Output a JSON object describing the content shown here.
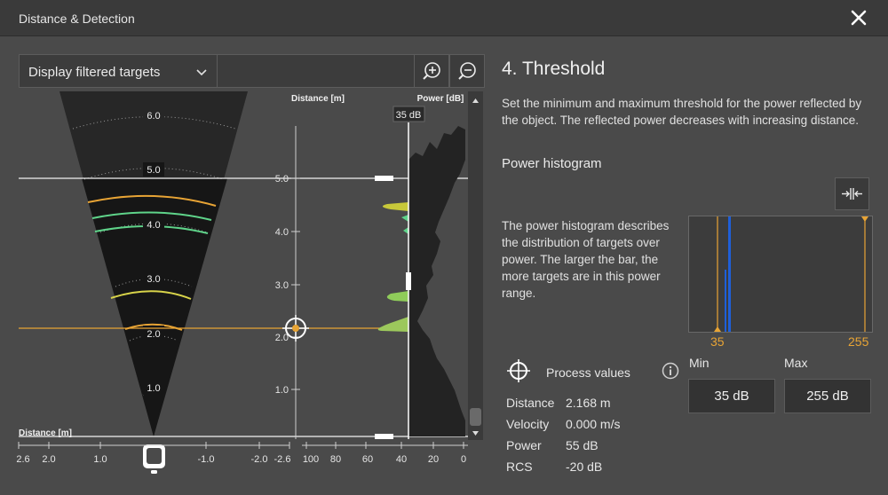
{
  "window": {
    "title": "Distance & Detection"
  },
  "toolbar": {
    "dropdown_value": "Display filtered targets"
  },
  "radar": {
    "arc_labels": [
      "6.0",
      "5.0",
      "4.0",
      "3.0",
      "2.0",
      "1.0"
    ],
    "bottom_axis_title": "Distance [m]",
    "bottom_ticks": [
      "2.6",
      "2.0",
      "1.0",
      "-1.0",
      "-2.0",
      "-2.6"
    ]
  },
  "distance_axis": {
    "title": "Distance [m]",
    "ticks": [
      "5.0",
      "4.0",
      "3.0",
      "2.0",
      "1.0"
    ]
  },
  "power_axis": {
    "title": "Power [dB]",
    "threshold_tooltip": "35 dB",
    "ticks": [
      "100",
      "80",
      "60",
      "40",
      "20",
      "0"
    ]
  },
  "panel": {
    "title": "4. Threshold",
    "description": "Set the minimum and maximum threshold for the power reflected by the object. The reflected power decreases with increasing distance.",
    "histogram_title": "Power histogram",
    "histogram_description": "The power histogram describes the distribution of targets over power. The larger the bar, the more targets are in this power range.",
    "histogram_min_label": "35",
    "histogram_max_label": "255",
    "process_title": "Process values",
    "process_values": [
      {
        "key": "Distance",
        "value": "2.168 m"
      },
      {
        "key": "Velocity",
        "value": "0.000 m/s"
      },
      {
        "key": "Power",
        "value": "55 dB"
      },
      {
        "key": "RCS",
        "value": "-20 dB"
      }
    ],
    "min_label": "Min",
    "max_label": "Max",
    "min_value": "35 dB",
    "max_value": "255 dB"
  },
  "colors": {
    "accent": "#e8a435",
    "target_green": "#5fd48a",
    "target_yellow": "#d8d44a",
    "histogram_bar": "#1f5fd8"
  }
}
